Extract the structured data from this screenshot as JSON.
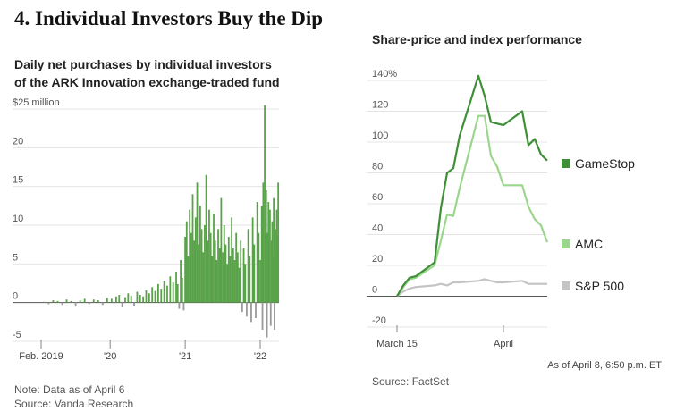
{
  "headline": "4. Individual Investors Buy the Dip",
  "left_chart": {
    "title_line1": "Daily net purchases by individual investors",
    "title_line2": "of the ARK Innovation exchange-traded fund",
    "note": "Note: Data as of April 6",
    "source": "Source: Vanda Research"
  },
  "right_chart": {
    "title": "Share-price and index performance",
    "as_of": "As of April 8, 6:50 p.m. ET",
    "source": "Source: FactSet"
  },
  "chart_data": [
    {
      "type": "bar",
      "title": "Daily net purchases by individual investors of the ARK Innovation exchange-traded fund",
      "ylim": [
        -5,
        25
      ],
      "yticks": [
        {
          "value": 25,
          "label": "$25 million"
        },
        {
          "value": 20,
          "label": "20"
        },
        {
          "value": 15,
          "label": "15"
        },
        {
          "value": 10,
          "label": "10"
        },
        {
          "value": 5,
          "label": "5"
        },
        {
          "value": 0,
          "label": "0"
        },
        {
          "value": -5,
          "label": "-5"
        }
      ],
      "xticks": [
        {
          "value": 0.0,
          "label": "Feb. 2019"
        },
        {
          "value": 0.92,
          "label": "'20"
        },
        {
          "value": 1.92,
          "label": "'21"
        },
        {
          "value": 2.92,
          "label": "'22"
        }
      ],
      "x_unit": "years since Feb. 2019",
      "xlim": [
        0,
        3.17
      ],
      "positive_color": "#5aa24a",
      "negative_color": "#9a9a9a",
      "series": [
        {
          "name": "Daily net purchases",
          "points": [
            [
              0.04,
              0.1
            ],
            [
              0.1,
              -0.2
            ],
            [
              0.16,
              0.3
            ],
            [
              0.22,
              0.2
            ],
            [
              0.28,
              -0.3
            ],
            [
              0.34,
              0.4
            ],
            [
              0.4,
              0.2
            ],
            [
              0.46,
              -0.4
            ],
            [
              0.52,
              0.3
            ],
            [
              0.58,
              0.5
            ],
            [
              0.64,
              -0.2
            ],
            [
              0.7,
              0.4
            ],
            [
              0.76,
              0.3
            ],
            [
              0.82,
              -0.3
            ],
            [
              0.88,
              0.6
            ],
            [
              0.94,
              0.5
            ],
            [
              1.0,
              0.8
            ],
            [
              1.04,
              1.0
            ],
            [
              1.08,
              -0.6
            ],
            [
              1.12,
              0.7
            ],
            [
              1.16,
              1.2
            ],
            [
              1.2,
              0.9
            ],
            [
              1.24,
              -0.4
            ],
            [
              1.28,
              1.4
            ],
            [
              1.32,
              1.0
            ],
            [
              1.36,
              0.8
            ],
            [
              1.4,
              1.6
            ],
            [
              1.44,
              1.2
            ],
            [
              1.48,
              2.0
            ],
            [
              1.52,
              1.5
            ],
            [
              1.56,
              2.4
            ],
            [
              1.6,
              1.8
            ],
            [
              1.64,
              2.8
            ],
            [
              1.68,
              2.2
            ],
            [
              1.72,
              3.4
            ],
            [
              1.76,
              2.6
            ],
            [
              1.8,
              4.0
            ],
            [
              1.82,
              2.4
            ],
            [
              1.84,
              -0.8
            ],
            [
              1.86,
              5.5
            ],
            [
              1.88,
              3.2
            ],
            [
              1.9,
              -1.0
            ],
            [
              1.92,
              8.5
            ],
            [
              1.94,
              10.5
            ],
            [
              1.96,
              6.0
            ],
            [
              1.98,
              12.0
            ],
            [
              2.0,
              9.0
            ],
            [
              2.02,
              14.0
            ],
            [
              2.04,
              8.0
            ],
            [
              2.06,
              11.0
            ],
            [
              2.08,
              15.5
            ],
            [
              2.1,
              7.5
            ],
            [
              2.12,
              12.5
            ],
            [
              2.14,
              9.5
            ],
            [
              2.16,
              6.5
            ],
            [
              2.18,
              10.0
            ],
            [
              2.2,
              16.5
            ],
            [
              2.22,
              8.0
            ],
            [
              2.24,
              12.0
            ],
            [
              2.26,
              9.0
            ],
            [
              2.28,
              6.0
            ],
            [
              2.3,
              11.5
            ],
            [
              2.32,
              8.0
            ],
            [
              2.34,
              5.5
            ],
            [
              2.36,
              9.5
            ],
            [
              2.38,
              7.0
            ],
            [
              2.4,
              13.5
            ],
            [
              2.42,
              6.5
            ],
            [
              2.44,
              10.0
            ],
            [
              2.46,
              7.5
            ],
            [
              2.48,
              5.0
            ],
            [
              2.5,
              8.5
            ],
            [
              2.52,
              6.0
            ],
            [
              2.54,
              11.0
            ],
            [
              2.56,
              7.0
            ],
            [
              2.58,
              5.5
            ],
            [
              2.6,
              9.0
            ],
            [
              2.62,
              6.5
            ],
            [
              2.64,
              4.5
            ],
            [
              2.66,
              8.0
            ],
            [
              2.68,
              -1.2
            ],
            [
              2.7,
              7.0
            ],
            [
              2.72,
              5.0
            ],
            [
              2.74,
              -1.8
            ],
            [
              2.76,
              9.5
            ],
            [
              2.78,
              6.0
            ],
            [
              2.8,
              -2.5
            ],
            [
              2.82,
              11.0
            ],
            [
              2.84,
              7.5
            ],
            [
              2.86,
              -2.0
            ],
            [
              2.88,
              13.0
            ],
            [
              2.9,
              9.0
            ],
            [
              2.92,
              5.5
            ],
            [
              2.94,
              12.5
            ],
            [
              2.95,
              -3.5
            ],
            [
              2.96,
              15.5
            ],
            [
              2.98,
              25.5
            ],
            [
              2.99,
              10.0
            ],
            [
              3.0,
              14.5
            ],
            [
              3.01,
              -4.5
            ],
            [
              3.02,
              9.0
            ],
            [
              3.03,
              13.0
            ],
            [
              3.04,
              7.0
            ],
            [
              3.05,
              12.0
            ],
            [
              3.06,
              -3.0
            ],
            [
              3.07,
              8.0
            ],
            [
              3.08,
              10.5
            ],
            [
              3.09,
              6.0
            ],
            [
              3.1,
              13.5
            ],
            [
              3.11,
              -3.5
            ],
            [
              3.12,
              9.5
            ],
            [
              3.13,
              7.0
            ],
            [
              3.14,
              12.0
            ],
            [
              3.15,
              8.5
            ],
            [
              3.16,
              15.5
            ]
          ]
        }
      ]
    },
    {
      "type": "line",
      "title": "Share-price and index performance",
      "ylim": [
        -20,
        140
      ],
      "yticks": [
        {
          "value": 140,
          "label": "140%"
        },
        {
          "value": 120,
          "label": "120"
        },
        {
          "value": 100,
          "label": "100"
        },
        {
          "value": 80,
          "label": "80"
        },
        {
          "value": 60,
          "label": "60"
        },
        {
          "value": 40,
          "label": "40"
        },
        {
          "value": 20,
          "label": "20"
        },
        {
          "value": 0,
          "label": "0"
        },
        {
          "value": -20,
          "label": "-20"
        }
      ],
      "xticks": [
        {
          "value": "2022-03-15",
          "label": "March 15"
        },
        {
          "value": "2022-04-01",
          "label": "April"
        }
      ],
      "xlim": [
        "2022-03-15",
        "2022-04-08"
      ],
      "series": [
        {
          "name": "GameStop",
          "color": "#3f8f38",
          "points": [
            [
              "2022-03-15",
              0
            ],
            [
              "2022-03-16",
              7
            ],
            [
              "2022-03-17",
              12
            ],
            [
              "2022-03-18",
              13
            ],
            [
              "2022-03-21",
              22
            ],
            [
              "2022-03-22",
              57
            ],
            [
              "2022-03-23",
              80
            ],
            [
              "2022-03-24",
              83
            ],
            [
              "2022-03-25",
              104
            ],
            [
              "2022-03-28",
              143
            ],
            [
              "2022-03-29",
              130
            ],
            [
              "2022-03-30",
              113
            ],
            [
              "2022-03-31",
              112
            ],
            [
              "2022-04-01",
              111
            ],
            [
              "2022-04-04",
              120
            ],
            [
              "2022-04-05",
              98
            ],
            [
              "2022-04-06",
              102
            ],
            [
              "2022-04-07",
              92
            ],
            [
              "2022-04-08",
              88
            ]
          ]
        },
        {
          "name": "AMC",
          "color": "#9cd68e",
          "points": [
            [
              "2022-03-15",
              0
            ],
            [
              "2022-03-16",
              6
            ],
            [
              "2022-03-17",
              11
            ],
            [
              "2022-03-18",
              12
            ],
            [
              "2022-03-21",
              20
            ],
            [
              "2022-03-22",
              36
            ],
            [
              "2022-03-23",
              53
            ],
            [
              "2022-03-24",
              52
            ],
            [
              "2022-03-25",
              70
            ],
            [
              "2022-03-28",
              117
            ],
            [
              "2022-03-29",
              117
            ],
            [
              "2022-03-30",
              91
            ],
            [
              "2022-03-31",
              84
            ],
            [
              "2022-04-01",
              72
            ],
            [
              "2022-04-04",
              72
            ],
            [
              "2022-04-05",
              58
            ],
            [
              "2022-04-06",
              50
            ],
            [
              "2022-04-07",
              46
            ],
            [
              "2022-04-08",
              35
            ]
          ]
        },
        {
          "name": "S&P 500",
          "color": "#c4c4c4",
          "points": [
            [
              "2022-03-15",
              0
            ],
            [
              "2022-03-16",
              3
            ],
            [
              "2022-03-17",
              5
            ],
            [
              "2022-03-18",
              6
            ],
            [
              "2022-03-21",
              7
            ],
            [
              "2022-03-22",
              8
            ],
            [
              "2022-03-23",
              7
            ],
            [
              "2022-03-24",
              9
            ],
            [
              "2022-03-25",
              9
            ],
            [
              "2022-03-28",
              10
            ],
            [
              "2022-03-29",
              11
            ],
            [
              "2022-03-30",
              10
            ],
            [
              "2022-03-31",
              9
            ],
            [
              "2022-04-01",
              9
            ],
            [
              "2022-04-04",
              10
            ],
            [
              "2022-04-05",
              8
            ],
            [
              "2022-04-06",
              8
            ],
            [
              "2022-04-07",
              8
            ],
            [
              "2022-04-08",
              8
            ]
          ]
        }
      ]
    }
  ]
}
